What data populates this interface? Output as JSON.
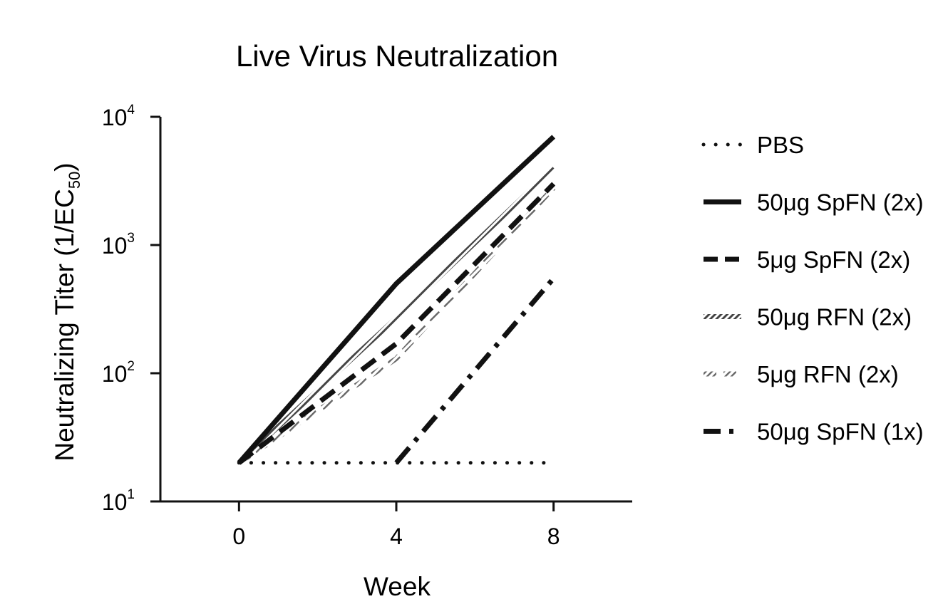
{
  "chart_data": {
    "type": "line",
    "title": "Live Virus Neutralization",
    "xlabel": "Week",
    "ylabel": {
      "main": "Neutralizing Titer (1/EC",
      "subscript": "50",
      "close": ")"
    },
    "x": [
      0,
      4,
      8
    ],
    "xticks": [
      "0",
      "4",
      "8"
    ],
    "xlim": [
      -2,
      10
    ],
    "yscale": "log",
    "ylim": [
      10,
      10000
    ],
    "yticks": [
      {
        "base": "10",
        "exp": "1"
      },
      {
        "base": "10",
        "exp": "2"
      },
      {
        "base": "10",
        "exp": "3"
      },
      {
        "base": "10",
        "exp": "4"
      }
    ],
    "grid": false,
    "legend_position": "right",
    "series": [
      {
        "name": "PBS",
        "style": "dotted",
        "points": [
          [
            0,
            20
          ],
          [
            4,
            20
          ],
          [
            8,
            20
          ]
        ]
      },
      {
        "name": "50μg SpFN (2x)",
        "style": "solid",
        "points": [
          [
            0,
            20
          ],
          [
            4,
            500
          ],
          [
            8,
            7000
          ]
        ]
      },
      {
        "name": "5μg SpFN (2x)",
        "style": "dashed",
        "points": [
          [
            0,
            20
          ],
          [
            4,
            170
          ],
          [
            8,
            3000
          ]
        ]
      },
      {
        "name": "50μg RFN (2x)",
        "style": "hatched",
        "points": [
          [
            0,
            20
          ],
          [
            4,
            270
          ],
          [
            8,
            4000
          ]
        ]
      },
      {
        "name": "5μg RFN (2x)",
        "style": "hatched-dashed",
        "points": [
          [
            0,
            20
          ],
          [
            4,
            130
          ],
          [
            8,
            2800
          ]
        ]
      },
      {
        "name": "50μg SpFN (1x)",
        "style": "dash-dot",
        "points": [
          [
            4,
            20
          ],
          [
            8,
            550
          ]
        ]
      }
    ]
  }
}
